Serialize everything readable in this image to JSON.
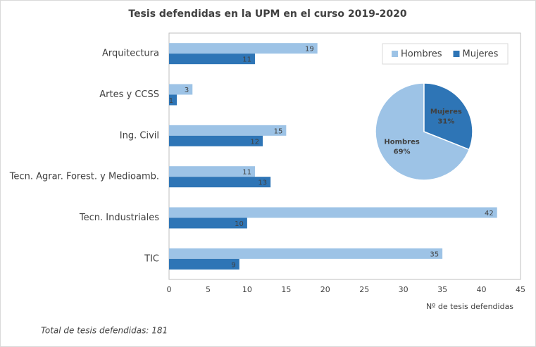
{
  "chart_data": [
    {
      "type": "hbar",
      "title": "Tesis defendidas en la UPM en el curso 2019-2020",
      "categories": [
        "Arquitectura",
        "Artes y CCSS",
        "Ing. Civil",
        "Tecn. Agrar. Forest. y Medioamb.",
        "Tecn. Industriales",
        "TIC"
      ],
      "series": [
        {
          "name": "Hombres",
          "color": "#9dc3e6",
          "values": [
            19,
            3,
            15,
            11,
            42,
            35
          ]
        },
        {
          "name": "Mujeres",
          "color": "#2e75b6",
          "values": [
            11,
            1,
            12,
            13,
            10,
            9
          ]
        }
      ],
      "xlabel": "Nº de tesis defendidas",
      "xlim": [
        0,
        45
      ],
      "xticks": [
        0,
        5,
        10,
        15,
        20,
        25,
        30,
        35,
        40,
        45
      ],
      "legend": "upper-right"
    },
    {
      "type": "pie",
      "categories": [
        "Hombres",
        "Mujeres"
      ],
      "values": [
        69,
        31
      ],
      "value_labels": [
        "69%",
        "31%"
      ],
      "colors": [
        "#9dc3e6",
        "#2e75b6"
      ]
    }
  ],
  "footnote": "Total de tesis defendidas: 181"
}
